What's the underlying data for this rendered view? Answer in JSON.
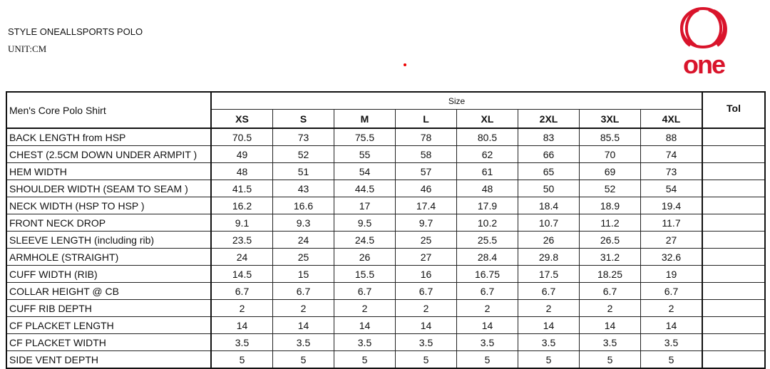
{
  "header": {
    "style": "STYLE  ONEALLSPORTS POLO",
    "unit": "UNIT:CM",
    "logo_text": "one"
  },
  "brand_color": "#d9142b",
  "table": {
    "title": "Men's Core Polo Shirt",
    "size_label": "Size",
    "tol_label": "Tol",
    "sizes": [
      "XS",
      "S",
      "M",
      "L",
      "XL",
      "2XL",
      "3XL",
      "4XL"
    ],
    "rows": [
      {
        "label": "BACK LENGTH from HSP",
        "values": [
          "70.5",
          "73",
          "75.5",
          "78",
          "80.5",
          "83",
          "85.5",
          "88"
        ]
      },
      {
        "label": "CHEST (2.5CM DOWN UNDER ARMPIT )",
        "values": [
          "49",
          "52",
          "55",
          "58",
          "62",
          "66",
          "70",
          "74"
        ]
      },
      {
        "label": "HEM WIDTH",
        "values": [
          "48",
          "51",
          "54",
          "57",
          "61",
          "65",
          "69",
          "73"
        ]
      },
      {
        "label": "SHOULDER WIDTH (SEAM TO SEAM )",
        "values": [
          "41.5",
          "43",
          "44.5",
          "46",
          "48",
          "50",
          "52",
          "54"
        ]
      },
      {
        "label": "NECK WIDTH (HSP TO HSP )",
        "values": [
          "16.2",
          "16.6",
          "17",
          "17.4",
          "17.9",
          "18.4",
          "18.9",
          "19.4"
        ]
      },
      {
        "label": "FRONT NECK DROP",
        "values": [
          "9.1",
          "9.3",
          "9.5",
          "9.7",
          "10.2",
          "10.7",
          "11.2",
          "11.7"
        ]
      },
      {
        "label": "SLEEVE LENGTH (including rib)",
        "values": [
          "23.5",
          "24",
          "24.5",
          "25",
          "25.5",
          "26",
          "26.5",
          "27"
        ]
      },
      {
        "label": "ARMHOLE (STRAIGHT)",
        "values": [
          "24",
          "25",
          "26",
          "27",
          "28.4",
          "29.8",
          "31.2",
          "32.6"
        ]
      },
      {
        "label": "CUFF WIDTH (RIB)",
        "values": [
          "14.5",
          "15",
          "15.5",
          "16",
          "16.75",
          "17.5",
          "18.25",
          "19"
        ]
      },
      {
        "label": "COLLAR HEIGHT @ CB",
        "values": [
          "6.7",
          "6.7",
          "6.7",
          "6.7",
          "6.7",
          "6.7",
          "6.7",
          "6.7"
        ]
      },
      {
        "label": "CUFF RIB DEPTH",
        "values": [
          "2",
          "2",
          "2",
          "2",
          "2",
          "2",
          "2",
          "2"
        ]
      },
      {
        "label": "CF PLACKET LENGTH",
        "values": [
          "14",
          "14",
          "14",
          "14",
          "14",
          "14",
          "14",
          "14"
        ]
      },
      {
        "label": "CF PLACKET WIDTH",
        "values": [
          "3.5",
          "3.5",
          "3.5",
          "3.5",
          "3.5",
          "3.5",
          "3.5",
          "3.5"
        ]
      },
      {
        "label": "SIDE VENT DEPTH",
        "values": [
          "5",
          "5",
          "5",
          "5",
          "5",
          "5",
          "5",
          "5"
        ]
      }
    ]
  }
}
